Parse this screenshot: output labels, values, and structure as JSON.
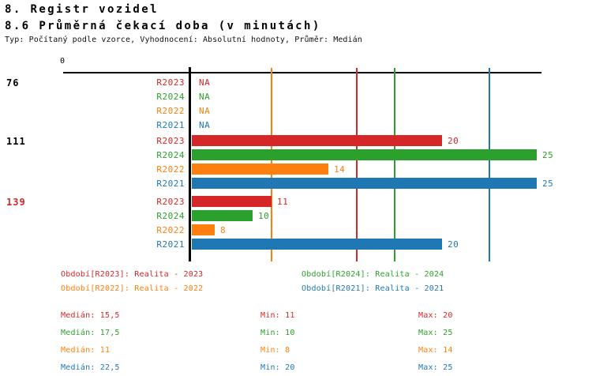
{
  "header": {
    "title": "8. Registr vozidel",
    "subtitle": "8.6 Průměrná čekací doba (v minutách)",
    "meta": "Typ: Počítaný podle vzorce, Vyhodnocení: Absolutní hodnoty, Průměr: Medián"
  },
  "chart_data": {
    "type": "bar",
    "orientation": "horizontal",
    "title": "8.6 Průměrná čekací doba (v minutách)",
    "x_axis": {
      "min": 0,
      "max": 25.25,
      "zero_tick_label": "0",
      "grid": false
    },
    "series_meta": [
      {
        "id": "R2023",
        "label": "R2023",
        "color": "#d62728",
        "median": 15.5,
        "min": 11,
        "max": 20
      },
      {
        "id": "R2024",
        "label": "R2024",
        "color": "#2ca02c",
        "median": 17.5,
        "min": 10,
        "max": 25
      },
      {
        "id": "R2022",
        "label": "R2022",
        "color": "#ff7f0e",
        "median": 11,
        "min": 8,
        "max": 14
      },
      {
        "id": "R2021",
        "label": "R2021",
        "color": "#1f77b4",
        "median": 22.5,
        "min": 20,
        "max": 25
      }
    ],
    "na_text": "NA",
    "groups": [
      {
        "label": "76",
        "label_color": "#000000",
        "values": [
          null,
          null,
          null,
          null
        ]
      },
      {
        "label": "111",
        "label_color": "#000000",
        "values": [
          20,
          25,
          14,
          25
        ]
      },
      {
        "label": "139",
        "label_color": "#d62728",
        "values": [
          11,
          10,
          8,
          20
        ]
      }
    ],
    "median_lines": [
      {
        "series": "R2023",
        "value": 15.5
      },
      {
        "series": "R2024",
        "value": 17.5
      },
      {
        "series": "R2022",
        "value": 11
      },
      {
        "series": "R2021",
        "value": 22.5
      }
    ]
  },
  "legend": {
    "rows": [
      [
        {
          "series": "R2023",
          "text": "Období[R2023]: Realita - 2023"
        },
        {
          "series": "R2024",
          "text": "Období[R2024]: Realita - 2024"
        }
      ],
      [
        {
          "series": "R2022",
          "text": "Období[R2022]: Realita - 2022"
        },
        {
          "series": "R2021",
          "text": "Období[R2021]: Realita - 2021"
        }
      ]
    ]
  },
  "stats": {
    "rows": [
      {
        "series": "R2023",
        "median": "Medián: 15,5",
        "min": "Min: 11",
        "max": "Max: 20"
      },
      {
        "series": "R2024",
        "median": "Medián: 17,5",
        "min": "Min: 10",
        "max": "Max: 25"
      },
      {
        "series": "R2022",
        "median": "Medián: 11",
        "min": "Min: 8",
        "max": "Max: 14"
      },
      {
        "series": "R2021",
        "median": "Medián: 22,5",
        "min": "Min: 20",
        "max": "Max: 25"
      }
    ]
  }
}
